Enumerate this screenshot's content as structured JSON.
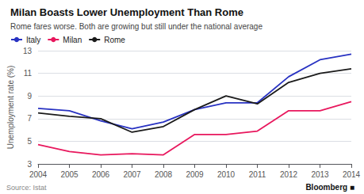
{
  "chart_data": {
    "type": "line",
    "title": "Milan Boasts Lower Unemployment Than Rome",
    "subtitle": "Rome fares worse. Both are growing but still under the national average",
    "ylabel": "Unemployment rate (%)",
    "annotations": [
      "Source: Istat",
      "Bloomberg ■"
    ],
    "x": [
      2004,
      2005,
      2006,
      2007,
      2008,
      2009,
      2010,
      2011,
      2012,
      2013,
      2014
    ],
    "series": [
      {
        "name": "Italy",
        "color": "#2832c2",
        "values": [
          7.9,
          7.7,
          6.8,
          6.1,
          6.7,
          7.8,
          8.4,
          8.4,
          10.7,
          12.2,
          12.7
        ]
      },
      {
        "name": "Milan",
        "color": "#e8175d",
        "values": [
          4.7,
          4.1,
          3.8,
          3.9,
          3.8,
          5.6,
          5.6,
          5.9,
          7.7,
          7.7,
          8.5
        ]
      },
      {
        "name": "Rome",
        "color": "#1a1a1a",
        "values": [
          7.5,
          7.2,
          7.0,
          5.8,
          6.3,
          7.8,
          9.0,
          8.3,
          10.2,
          11.0,
          11.4
        ]
      }
    ],
    "xlim": [
      2004,
      2014
    ],
    "xticks": [
      2004,
      2005,
      2006,
      2007,
      2008,
      2009,
      2010,
      2011,
      2012,
      2013,
      2014
    ],
    "ylim": [
      3,
      13
    ],
    "yticks": [
      3,
      5,
      7,
      9,
      11,
      13
    ],
    "grid": true,
    "legend": "upper left"
  }
}
